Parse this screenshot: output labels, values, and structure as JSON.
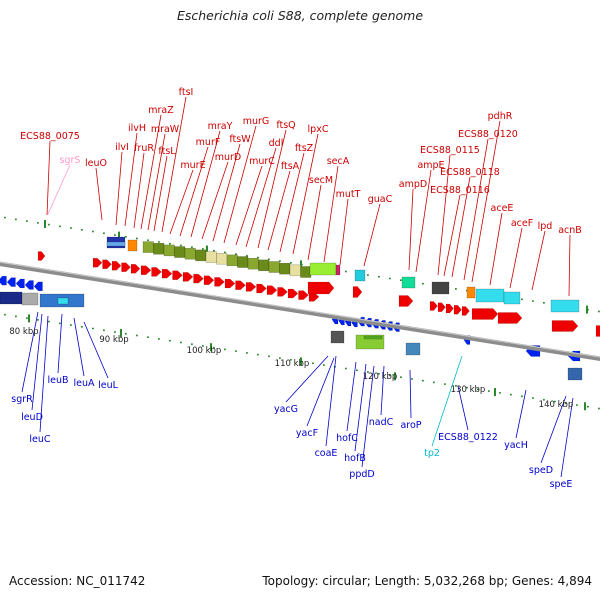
{
  "title": "Escherichia coli S88, complete genome",
  "accession": "Accession: NC_011742",
  "summary": "Topology: circular; Length: 5,032,268 bp; Genes: 4,894",
  "colors": {
    "forward_label": "#cc0000",
    "reverse_label": "#0000cc",
    "pseudo_fwd": "#ff99cc",
    "pseudo_rev": "#00bbcc",
    "backbone": "#8c8c8c"
  },
  "ticks": [
    {
      "label": "80 kbp"
    },
    {
      "label": "90 kbp"
    },
    {
      "label": "100 kbp"
    },
    {
      "label": "110 kbp"
    },
    {
      "label": "120 kbp"
    },
    {
      "label": "130 kbp"
    },
    {
      "label": "140 kbp"
    }
  ],
  "forward_genes": [
    {
      "name": "ECS88_0075"
    },
    {
      "name": "sgrS"
    },
    {
      "name": "leuO"
    },
    {
      "name": "ilvI"
    },
    {
      "name": "ilvH"
    },
    {
      "name": "fruR"
    },
    {
      "name": "mraZ"
    },
    {
      "name": "mraW"
    },
    {
      "name": "ftsL"
    },
    {
      "name": "ftsI"
    },
    {
      "name": "murE"
    },
    {
      "name": "murF"
    },
    {
      "name": "mraY"
    },
    {
      "name": "murD"
    },
    {
      "name": "ftsW"
    },
    {
      "name": "murG"
    },
    {
      "name": "murC"
    },
    {
      "name": "ddl"
    },
    {
      "name": "ftsQ"
    },
    {
      "name": "ftsA"
    },
    {
      "name": "ftsZ"
    },
    {
      "name": "lpxC"
    },
    {
      "name": "secM"
    },
    {
      "name": "secA"
    },
    {
      "name": "mutT"
    },
    {
      "name": "guaC"
    },
    {
      "name": "ampD"
    },
    {
      "name": "ampE"
    },
    {
      "name": "ECS88_0115"
    },
    {
      "name": "ECS88_0116"
    },
    {
      "name": "ECS88_0118"
    },
    {
      "name": "ECS88_0120"
    },
    {
      "name": "pdhR"
    },
    {
      "name": "aceE"
    },
    {
      "name": "aceF"
    },
    {
      "name": "lpd"
    },
    {
      "name": "acnB"
    }
  ],
  "reverse_genes": [
    {
      "name": "sgrR"
    },
    {
      "name": "leuD"
    },
    {
      "name": "leuC"
    },
    {
      "name": "leuB"
    },
    {
      "name": "leuA"
    },
    {
      "name": "leuL"
    },
    {
      "name": "yacG"
    },
    {
      "name": "yacF"
    },
    {
      "name": "coaE"
    },
    {
      "name": "hofC"
    },
    {
      "name": "hofB"
    },
    {
      "name": "ppdD"
    },
    {
      "name": "nadC"
    },
    {
      "name": "aroP"
    },
    {
      "name": "tp2"
    },
    {
      "name": "ECS88_0122"
    },
    {
      "name": "yacH"
    },
    {
      "name": "speD"
    },
    {
      "name": "speE"
    }
  ]
}
